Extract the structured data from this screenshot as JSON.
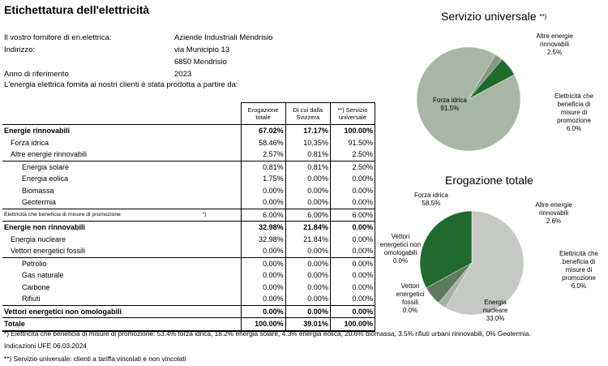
{
  "title": "Etichettatura dell'elettricità",
  "info": [
    {
      "label": "Il vostro fornitore di en.elettrica:",
      "value": "Aziende Industriali Mendrisio"
    },
    {
      "label": "Indirizzo:",
      "value": "via Municipio 13"
    },
    {
      "label": "",
      "value": "6850 Mendrisio"
    },
    {
      "label": "Anno di riferimento",
      "value": "2023"
    }
  ],
  "intro": "L'energia elettrica fornita ai nostri clienti è stata prodotta a partire da:",
  "table": {
    "headers": [
      "Erogazione totale",
      "Di cui dalla Svizzera",
      "**) Servizio universale"
    ],
    "rows": [
      {
        "label": "Energie rinnovabili",
        "note": "",
        "values": [
          "67.02%",
          "17.17%",
          "100.00%"
        ]
      },
      {
        "label": "Forza idrica",
        "note": "",
        "values": [
          "58.46%",
          "10.35%",
          "91.50%"
        ]
      },
      {
        "label": "Altre energie rinnovabili",
        "note": "",
        "values": [
          "2.57%",
          "0.81%",
          "2.50%"
        ]
      },
      {
        "label": "Energia solare",
        "note": "",
        "values": [
          "0.81%",
          "0.81%",
          "2.50%"
        ]
      },
      {
        "label": "Energia eolica",
        "note": "",
        "values": [
          "1.75%",
          "0.00%",
          "0.00%"
        ]
      },
      {
        "label": "Biomassa",
        "note": "",
        "values": [
          "0.00%",
          "0.00%",
          "0.00%"
        ]
      },
      {
        "label": "Geotermia",
        "note": "",
        "values": [
          "0.00%",
          "0.00%",
          "0.00%"
        ]
      },
      {
        "label": "Elettricità che beneficia di misure di promozione",
        "note": "*)",
        "values": [
          "6.00%",
          "6.00%",
          "6.00%"
        ]
      },
      {
        "label": "Energie non rinnovabili",
        "note": "",
        "values": [
          "32.98%",
          "21.84%",
          "0.00%"
        ]
      },
      {
        "label": "Energia nucleare",
        "note": "",
        "values": [
          "32.98%",
          "21.84%",
          "0.00%"
        ]
      },
      {
        "label": "Vettori energetici fossili",
        "note": "",
        "values": [
          "0.00%",
          "0.00%",
          "0.00%"
        ]
      },
      {
        "label": "Petrolio",
        "note": "",
        "values": [
          "0.00%",
          "0.00%",
          "0.00%"
        ]
      },
      {
        "label": "Gas naturale",
        "note": "",
        "values": [
          "0.00%",
          "0.00%",
          "0.00%"
        ]
      },
      {
        "label": "Carbone",
        "note": "",
        "values": [
          "0.00%",
          "0.00%",
          "0.00%"
        ]
      },
      {
        "label": "Rifiuti",
        "note": "",
        "values": [
          "0.00%",
          "0.00%",
          "0.00%"
        ]
      },
      {
        "label": "Vettori energetici non omologabili",
        "note": "",
        "values": [
          "0.00%",
          "0.00%",
          "0.00%"
        ]
      },
      {
        "label": "Totale",
        "note": "",
        "values": [
          "100.00%",
          "39.01%",
          "100.00%"
        ]
      }
    ]
  },
  "footnotes": [
    "*) Elettricità che beneficia di misure di promozione: 53.4% forza idrica, 18.2% energia solare,  4.3% energia eolica, 20.6% biomassa, 3.5% rifiuti urbani rinnovabili, 0% Geotermia.",
    "Indicazioni UFE 06.03.2024",
    "**) Servizio universale: clienti a tariffa vincolati e non vincolati"
  ],
  "chart_data": [
    {
      "type": "pie",
      "title": "Servizio universale",
      "title_note": "**)",
      "slices": [
        {
          "label": "Forza idrica",
          "value": 91.5,
          "display": "91.5%",
          "color": "#a8b6a6"
        },
        {
          "label": "Altre energie rinnovabili",
          "value": 2.5,
          "display": "2.5%",
          "color": "#889684"
        },
        {
          "label": "Elettricità che beneficia di misure di promozione",
          "value": 6.0,
          "display": "6.0%",
          "color": "#1e6d2d"
        }
      ]
    },
    {
      "type": "pie",
      "title": "Erogazione totale",
      "slices": [
        {
          "label": "Forza idrica",
          "value": 58.5,
          "display": "58.5%",
          "color": "#c4cac3"
        },
        {
          "label": "Altre energie rinnovabili",
          "value": 2.6,
          "display": "2.6%",
          "color": "#a8b2a6"
        },
        {
          "label": "Elettricità che beneficia di misure di promozione",
          "value": 6.0,
          "display": "6.0%",
          "color": "#5e7a5c"
        },
        {
          "label": "Energia nucleare",
          "value": 33.0,
          "display": "33.0%",
          "color": "#1f6a2c"
        },
        {
          "label": "Vettori energetici fossili",
          "value": 0.0,
          "display": "0.0%",
          "color": "#3a4a38"
        },
        {
          "label": "Vettori energetici non omologabili",
          "value": 0.0,
          "display": "0.0%",
          "color": "#6c6c6c"
        }
      ]
    }
  ]
}
